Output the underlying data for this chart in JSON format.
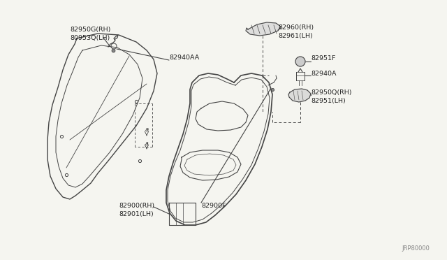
{
  "bg_color": "#f5f5f0",
  "line_color": "#444444",
  "text_color": "#222222",
  "diagram_id": "JRP80000",
  "label_82950G": "82950G(RH)",
  "label_80953Q": "80953Q(LH)",
  "label_82940AA": "82940AA",
  "label_82960RH": "82960(RH)",
  "label_82961LH": "82961(LH)",
  "label_82951F": "82951F",
  "label_82940A": "82940A",
  "label_82950QRH": "82950Q(RH)",
  "label_82951LH": "82951(LH)",
  "label_82900F": "82900F",
  "label_82900RH": "82900(RH)",
  "label_82901LH": "82901(LH)"
}
